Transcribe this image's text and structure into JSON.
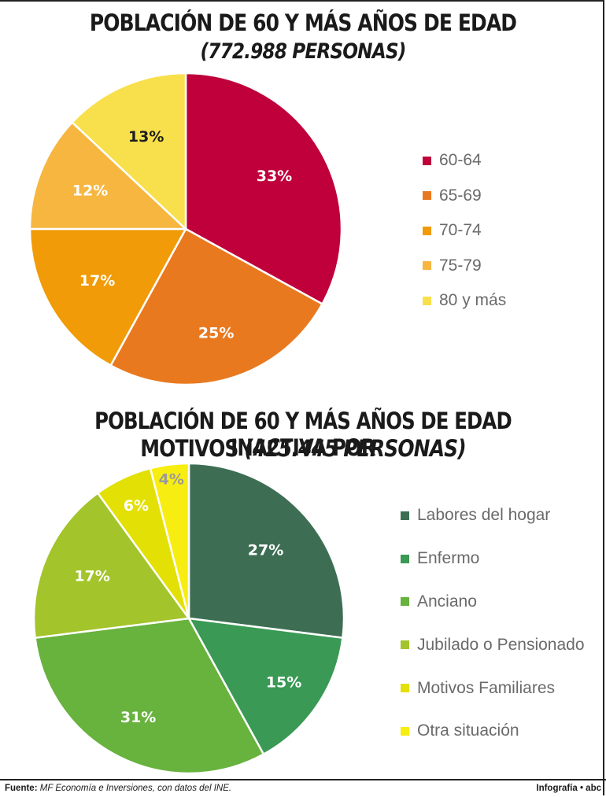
{
  "chart1": {
    "title": "POBLACIÓN DE 60 Y MÁS AÑOS DE EDAD",
    "subtitle": "(772.988 PERSONAS)"
  },
  "chart2": {
    "title_line1": "POBLACIÓN DE 60 Y MÁS AÑOS DE EDAD INACTIVA POR",
    "title_line2_main": "MOTIVOS",
    "title_line2_sub": "(425.445 PERSONAS)"
  },
  "chart_data": [
    {
      "type": "pie",
      "title": "POBLACIÓN DE 60 Y MÁS AÑOS DE EDAD",
      "subtitle": "(772.988 PERSONAS)",
      "categories": [
        "60-64",
        "65-69",
        "70-74",
        "75-79",
        "80 y más"
      ],
      "values": [
        33,
        25,
        17,
        12,
        13
      ],
      "labels": [
        "33%",
        "25%",
        "17%",
        "12%",
        "13%"
      ],
      "colors": [
        "#bf003b",
        "#e9791f",
        "#f09b07",
        "#f6b640",
        "#f8e04c"
      ],
      "legend": "right"
    },
    {
      "type": "pie",
      "title": "POBLACIÓN DE 60 Y MÁS AÑOS DE EDAD INACTIVA POR MOTIVOS",
      "subtitle": "(425.445 PERSONAS)",
      "categories": [
        "Labores del hogar",
        "Enfermo",
        "Anciano",
        "Jubilado o Pensionado",
        "Motivos Familiares",
        "Otra situación"
      ],
      "values": [
        27,
        15,
        31,
        17,
        6,
        4
      ],
      "labels": [
        "27%",
        "15%",
        "31%",
        "17%",
        "6%",
        "4%"
      ],
      "colors": [
        "#3d6e53",
        "#3a9954",
        "#68b23e",
        "#a3c42a",
        "#e3e005",
        "#f8ed10"
      ],
      "legend": "right"
    }
  ],
  "footer": {
    "source_label": "Fuente:",
    "source_text": "MF Economía e Inversiones, con datos del INE.",
    "credit": "Infografía • abc"
  }
}
